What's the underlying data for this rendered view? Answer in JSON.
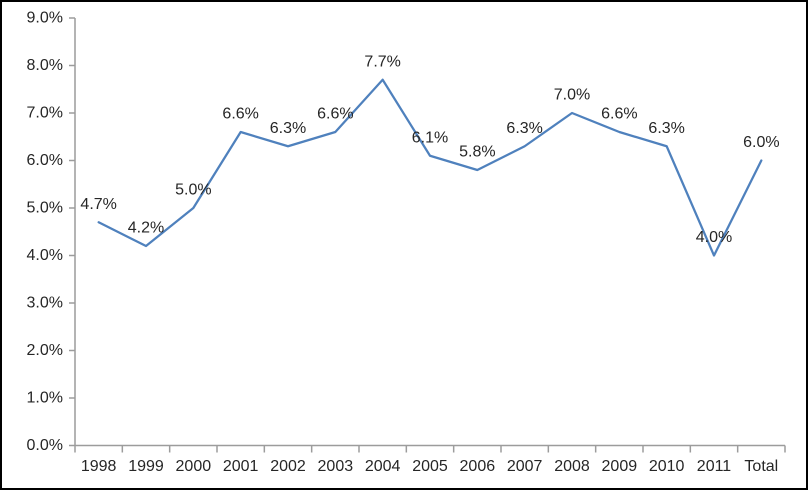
{
  "chart_data": {
    "type": "line",
    "title": "",
    "xlabel": "",
    "ylabel": "",
    "categories": [
      "1998",
      "1999",
      "2000",
      "2001",
      "2002",
      "2003",
      "2004",
      "2005",
      "2006",
      "2007",
      "2008",
      "2009",
      "2010",
      "2011",
      "Total"
    ],
    "values": [
      4.7,
      4.2,
      5.0,
      6.6,
      6.3,
      6.6,
      7.7,
      6.1,
      5.8,
      6.3,
      7.0,
      6.6,
      6.3,
      4.0,
      6.0
    ],
    "point_labels": [
      "4.7%",
      "4.2%",
      "5.0%",
      "6.6%",
      "6.3%",
      "6.6%",
      "7.7%",
      "6.1%",
      "5.8%",
      "6.3%",
      "7.0%",
      "6.6%",
      "6.3%",
      "4.0%",
      "6.0%"
    ],
    "y_tick_labels": [
      "0.0%",
      "1.0%",
      "2.0%",
      "3.0%",
      "4.0%",
      "5.0%",
      "6.0%",
      "7.0%",
      "8.0%",
      "9.0%"
    ],
    "ylim": [
      0,
      9
    ],
    "grid": false,
    "legend_position": "none",
    "colors": {
      "line": "#4F81BD",
      "axis": "#9c9c9c",
      "text": "#262626",
      "background": "#ffffff",
      "border": "#000000"
    }
  }
}
